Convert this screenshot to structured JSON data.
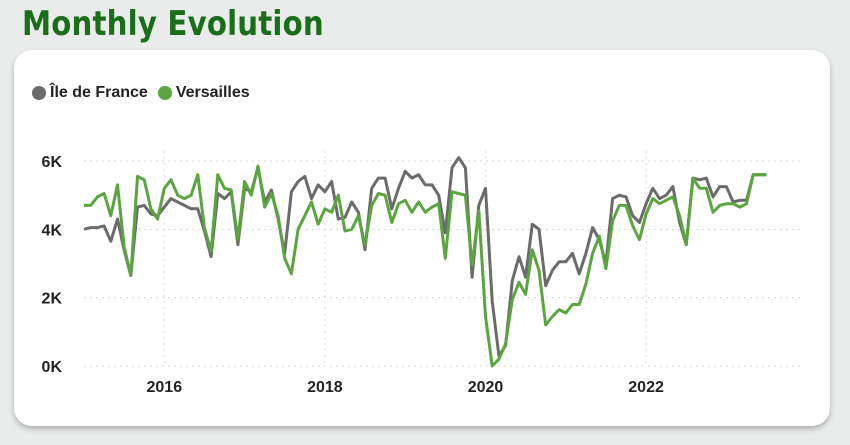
{
  "page": {
    "title": "Monthly Evolution"
  },
  "colors": {
    "ile_de_france": "#6b6b6b",
    "versailles": "#5aa540",
    "title": "#1a6e1a"
  },
  "chart_data": {
    "type": "line",
    "title": "",
    "xlabel": "",
    "ylabel": "",
    "legend_position": "top-left",
    "grid": "dotted",
    "x_ticks": [
      "2016",
      "2018",
      "2020",
      "2022"
    ],
    "y_ticks": [
      "0K",
      "2K",
      "4K",
      "6K"
    ],
    "xlim": [
      "2015-01",
      "2023-12"
    ],
    "ylim": [
      0,
      6000
    ],
    "x": [
      "2015-01",
      "2015-02",
      "2015-03",
      "2015-04",
      "2015-05",
      "2015-06",
      "2015-07",
      "2015-08",
      "2015-09",
      "2015-10",
      "2015-11",
      "2015-12",
      "2016-01",
      "2016-02",
      "2016-03",
      "2016-04",
      "2016-05",
      "2016-06",
      "2016-07",
      "2016-08",
      "2016-09",
      "2016-10",
      "2016-11",
      "2016-12",
      "2017-01",
      "2017-02",
      "2017-03",
      "2017-04",
      "2017-05",
      "2017-06",
      "2017-07",
      "2017-08",
      "2017-09",
      "2017-10",
      "2017-11",
      "2017-12",
      "2018-01",
      "2018-02",
      "2018-03",
      "2018-04",
      "2018-05",
      "2018-06",
      "2018-07",
      "2018-08",
      "2018-09",
      "2018-10",
      "2018-11",
      "2018-12",
      "2019-01",
      "2019-02",
      "2019-03",
      "2019-04",
      "2019-05",
      "2019-06",
      "2019-07",
      "2019-08",
      "2019-09",
      "2019-10",
      "2019-11",
      "2019-12",
      "2020-01",
      "2020-02",
      "2020-03",
      "2020-04",
      "2020-05",
      "2020-06",
      "2020-07",
      "2020-08",
      "2020-09",
      "2020-10",
      "2020-11",
      "2020-12",
      "2021-01",
      "2021-02",
      "2021-03",
      "2021-04",
      "2021-05",
      "2021-06",
      "2021-07",
      "2021-08",
      "2021-09",
      "2021-10",
      "2021-11",
      "2021-12",
      "2022-01",
      "2022-02",
      "2022-03",
      "2022-04",
      "2022-05",
      "2022-06",
      "2022-07",
      "2022-08",
      "2022-09",
      "2022-10",
      "2022-11",
      "2022-12",
      "2023-01",
      "2023-02",
      "2023-03",
      "2023-04",
      "2023-05",
      "2023-06",
      "2023-07",
      "2023-08",
      "2023-09",
      "2023-10",
      "2023-11",
      "2023-12"
    ],
    "series": [
      {
        "name": "Île de France",
        "color": "#6b6b6b",
        "values": [
          4000,
          4050,
          4050,
          4100,
          3650,
          4300,
          3400,
          2650,
          4650,
          4700,
          4450,
          4400,
          4650,
          4900,
          4800,
          4700,
          4600,
          4600,
          3950,
          3200,
          5050,
          4900,
          5100,
          3550,
          5200,
          5100,
          5800,
          4800,
          5150,
          4300,
          3300,
          5100,
          5400,
          5550,
          4900,
          5300,
          5100,
          5400,
          4300,
          4350,
          4800,
          4500,
          3400,
          5200,
          5500,
          5500,
          4600,
          5200,
          5700,
          5500,
          5600,
          5300,
          5300,
          5000,
          3900,
          5800,
          6100,
          5800,
          2600,
          4700,
          5200,
          1900,
          300,
          600,
          2500,
          3200,
          2600,
          4150,
          4000,
          2350,
          2800,
          3050,
          3050,
          3300,
          2700,
          3300,
          4050,
          3700,
          3000,
          4900,
          5000,
          4950,
          4400,
          4200,
          4750,
          5200,
          4900,
          5000,
          5250,
          4200,
          3550,
          5500,
          5450,
          5500,
          4950,
          5250,
          5250,
          4800,
          4850,
          4850,
          5600,
          5600,
          5600,
          5600,
          5600,
          5600,
          5600,
          5600
        ]
      },
      {
        "name": "Versailles",
        "color": "#5aa540",
        "values": [
          4700,
          4700,
          4950,
          5050,
          4400,
          5300,
          3500,
          2650,
          5550,
          5450,
          4600,
          4300,
          5200,
          5450,
          5000,
          4900,
          5000,
          5600,
          4050,
          3350,
          5600,
          5200,
          5150,
          3700,
          5400,
          5000,
          5850,
          4650,
          5050,
          4400,
          3150,
          2700,
          4000,
          4400,
          4800,
          4150,
          4600,
          4500,
          5000,
          3950,
          4000,
          4400,
          3550,
          4700,
          5050,
          5000,
          4200,
          4750,
          4850,
          4500,
          4800,
          4500,
          4650,
          4750,
          3150,
          5100,
          5050,
          5000,
          2950,
          4550,
          1450,
          0,
          200,
          650,
          1950,
          2450,
          2100,
          3400,
          2800,
          1200,
          1450,
          1650,
          1550,
          1800,
          1800,
          2400,
          3300,
          3800,
          2850,
          4250,
          4700,
          4700,
          4100,
          3700,
          4450,
          4900,
          4750,
          4850,
          4950,
          4400,
          3550,
          5500,
          5200,
          5200,
          4500,
          4700,
          4750,
          4750,
          4650,
          4750,
          5600,
          5600,
          5600,
          5600,
          5600,
          5600,
          5600,
          5600
        ]
      }
    ]
  }
}
